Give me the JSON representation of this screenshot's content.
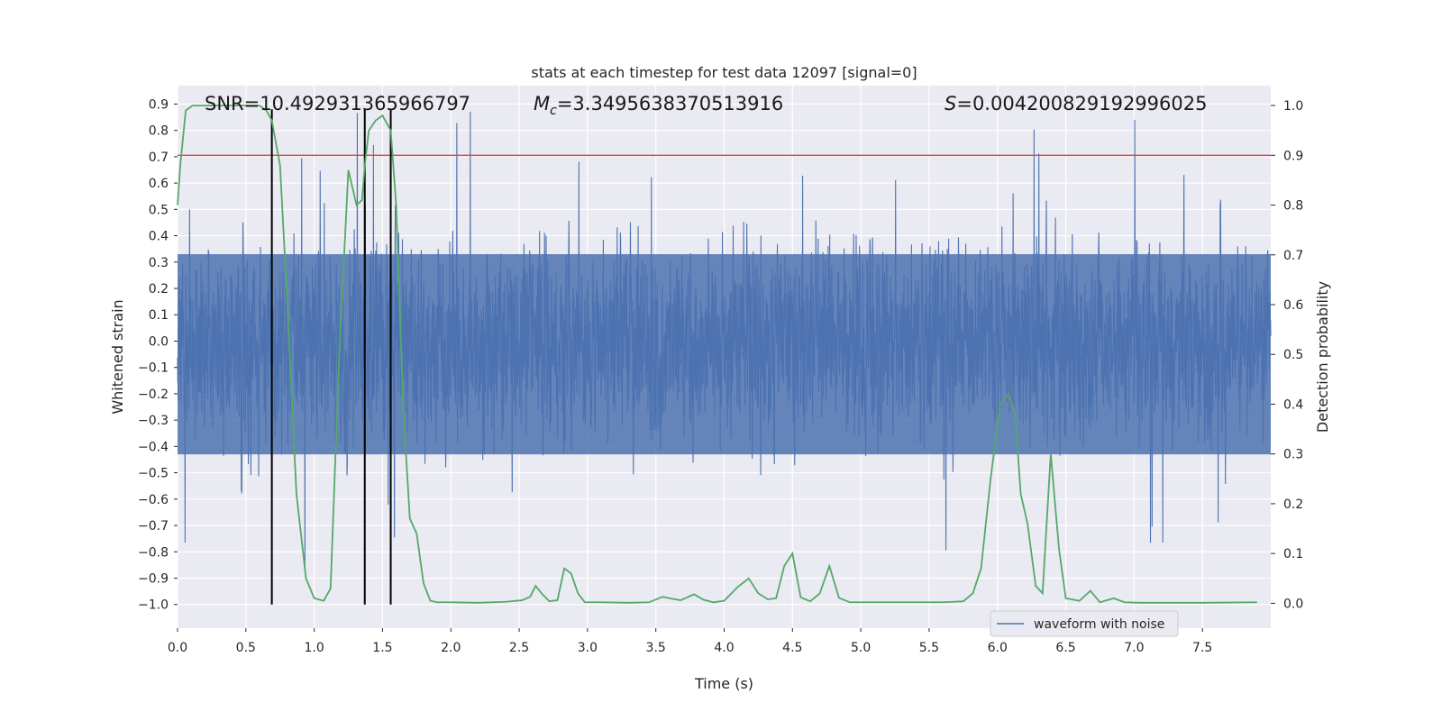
{
  "chart_data": {
    "type": "line",
    "title": "stats at each timestep for test data 12097 [signal=0]",
    "xlabel": "Time (s)",
    "ylabel": "Whitened strain",
    "ylabel_right": "Detection probability",
    "xlim": [
      0.0,
      8.0
    ],
    "ylim": [
      -1.09,
      0.97
    ],
    "ylim_right": [
      -0.05,
      1.04
    ],
    "x_ticks": [
      0.0,
      0.5,
      1.0,
      1.5,
      2.0,
      2.5,
      3.0,
      3.5,
      4.0,
      4.5,
      5.0,
      5.5,
      6.0,
      6.5,
      7.0,
      7.5
    ],
    "x_tick_labels": [
      "0.0",
      "0.5",
      "1.0",
      "1.5",
      "2.0",
      "2.5",
      "3.0",
      "3.5",
      "4.0",
      "4.5",
      "5.0",
      "5.5",
      "6.0",
      "6.5",
      "7.0",
      "7.5"
    ],
    "y_ticks": [
      -1.0,
      -0.9,
      -0.8,
      -0.7,
      -0.6,
      -0.5,
      -0.4,
      -0.3,
      -0.2,
      -0.1,
      0.0,
      0.1,
      0.2,
      0.3,
      0.4,
      0.5,
      0.6,
      0.7,
      0.8,
      0.9
    ],
    "y_tick_labels": [
      "−1.0",
      "−0.9",
      "−0.8",
      "−0.7",
      "−0.6",
      "−0.5",
      "−0.4",
      "−0.3",
      "−0.2",
      "−0.1",
      "0.0",
      "0.1",
      "0.2",
      "0.3",
      "0.4",
      "0.5",
      "0.6",
      "0.7",
      "0.8",
      "0.9"
    ],
    "y_right_ticks": [
      0.0,
      0.1,
      0.2,
      0.3,
      0.4,
      0.5,
      0.6,
      0.7,
      0.8,
      0.9,
      1.0
    ],
    "y_right_tick_labels": [
      "0.0",
      "0.1",
      "0.2",
      "0.3",
      "0.4",
      "0.5",
      "0.6",
      "0.7",
      "0.8",
      "0.9",
      "1.0"
    ],
    "grid": true,
    "annotations": {
      "snr": "SNR=10.492931365966797",
      "mc_symbol": "M",
      "mc_sub": "c",
      "mc_value": "=3.3495638370513916",
      "s_symbol": "S",
      "s_value": "=0.004200829192996025"
    },
    "threshold": {
      "axis": "right",
      "value": 0.9,
      "color": "#c44e52"
    },
    "vertical_lines": {
      "x": [
        0.69,
        1.37,
        1.56
      ],
      "color": "#000000"
    },
    "legend": {
      "label": "waveform with noise",
      "position": "lower-right"
    },
    "series": [
      {
        "name": "waveform with noise",
        "axis": "left",
        "color": "#4c72b0",
        "kind": "noise",
        "sigma": 0.175,
        "seed": 12097
      },
      {
        "name": "detection probability",
        "axis": "right",
        "color": "#55a868",
        "x": [
          0.0,
          0.02,
          0.06,
          0.11,
          0.2,
          0.3,
          0.4,
          0.5,
          0.6,
          0.65,
          0.69,
          0.75,
          0.8,
          0.87,
          0.94,
          1.0,
          1.07,
          1.12,
          1.18,
          1.25,
          1.31,
          1.35,
          1.37,
          1.4,
          1.45,
          1.5,
          1.56,
          1.6,
          1.65,
          1.7,
          1.75,
          1.8,
          1.85,
          1.9,
          2.0,
          2.2,
          2.4,
          2.52,
          2.58,
          2.62,
          2.67,
          2.72,
          2.78,
          2.83,
          2.88,
          2.93,
          2.98,
          3.1,
          3.3,
          3.45,
          3.55,
          3.62,
          3.68,
          3.78,
          3.85,
          3.92,
          4.0,
          4.1,
          4.18,
          4.25,
          4.32,
          4.38,
          4.44,
          4.5,
          4.56,
          4.63,
          4.7,
          4.77,
          4.84,
          4.92,
          5.1,
          5.4,
          5.6,
          5.75,
          5.82,
          5.88,
          5.95,
          6.02,
          6.08,
          6.13,
          6.17,
          6.22,
          6.28,
          6.33,
          6.39,
          6.45,
          6.5,
          6.6,
          6.68,
          6.75,
          6.85,
          6.93,
          7.05,
          7.5,
          7.9
        ],
        "y": [
          0.8,
          0.88,
          0.99,
          1.0,
          1.0,
          1.0,
          1.0,
          1.0,
          1.0,
          0.99,
          0.97,
          0.88,
          0.62,
          0.22,
          0.05,
          0.01,
          0.005,
          0.03,
          0.48,
          0.87,
          0.8,
          0.81,
          0.88,
          0.95,
          0.97,
          0.98,
          0.95,
          0.8,
          0.4,
          0.17,
          0.14,
          0.04,
          0.005,
          0.002,
          0.002,
          0.001,
          0.003,
          0.006,
          0.013,
          0.035,
          0.018,
          0.004,
          0.006,
          0.07,
          0.06,
          0.02,
          0.002,
          0.002,
          0.001,
          0.002,
          0.013,
          0.009,
          0.006,
          0.018,
          0.007,
          0.002,
          0.005,
          0.033,
          0.05,
          0.02,
          0.008,
          0.01,
          0.075,
          0.1,
          0.012,
          0.004,
          0.02,
          0.075,
          0.011,
          0.002,
          0.002,
          0.002,
          0.002,
          0.004,
          0.02,
          0.07,
          0.25,
          0.4,
          0.42,
          0.38,
          0.22,
          0.16,
          0.035,
          0.02,
          0.3,
          0.11,
          0.01,
          0.005,
          0.025,
          0.002,
          0.01,
          0.002,
          0.001,
          0.001,
          0.002
        ]
      }
    ]
  }
}
